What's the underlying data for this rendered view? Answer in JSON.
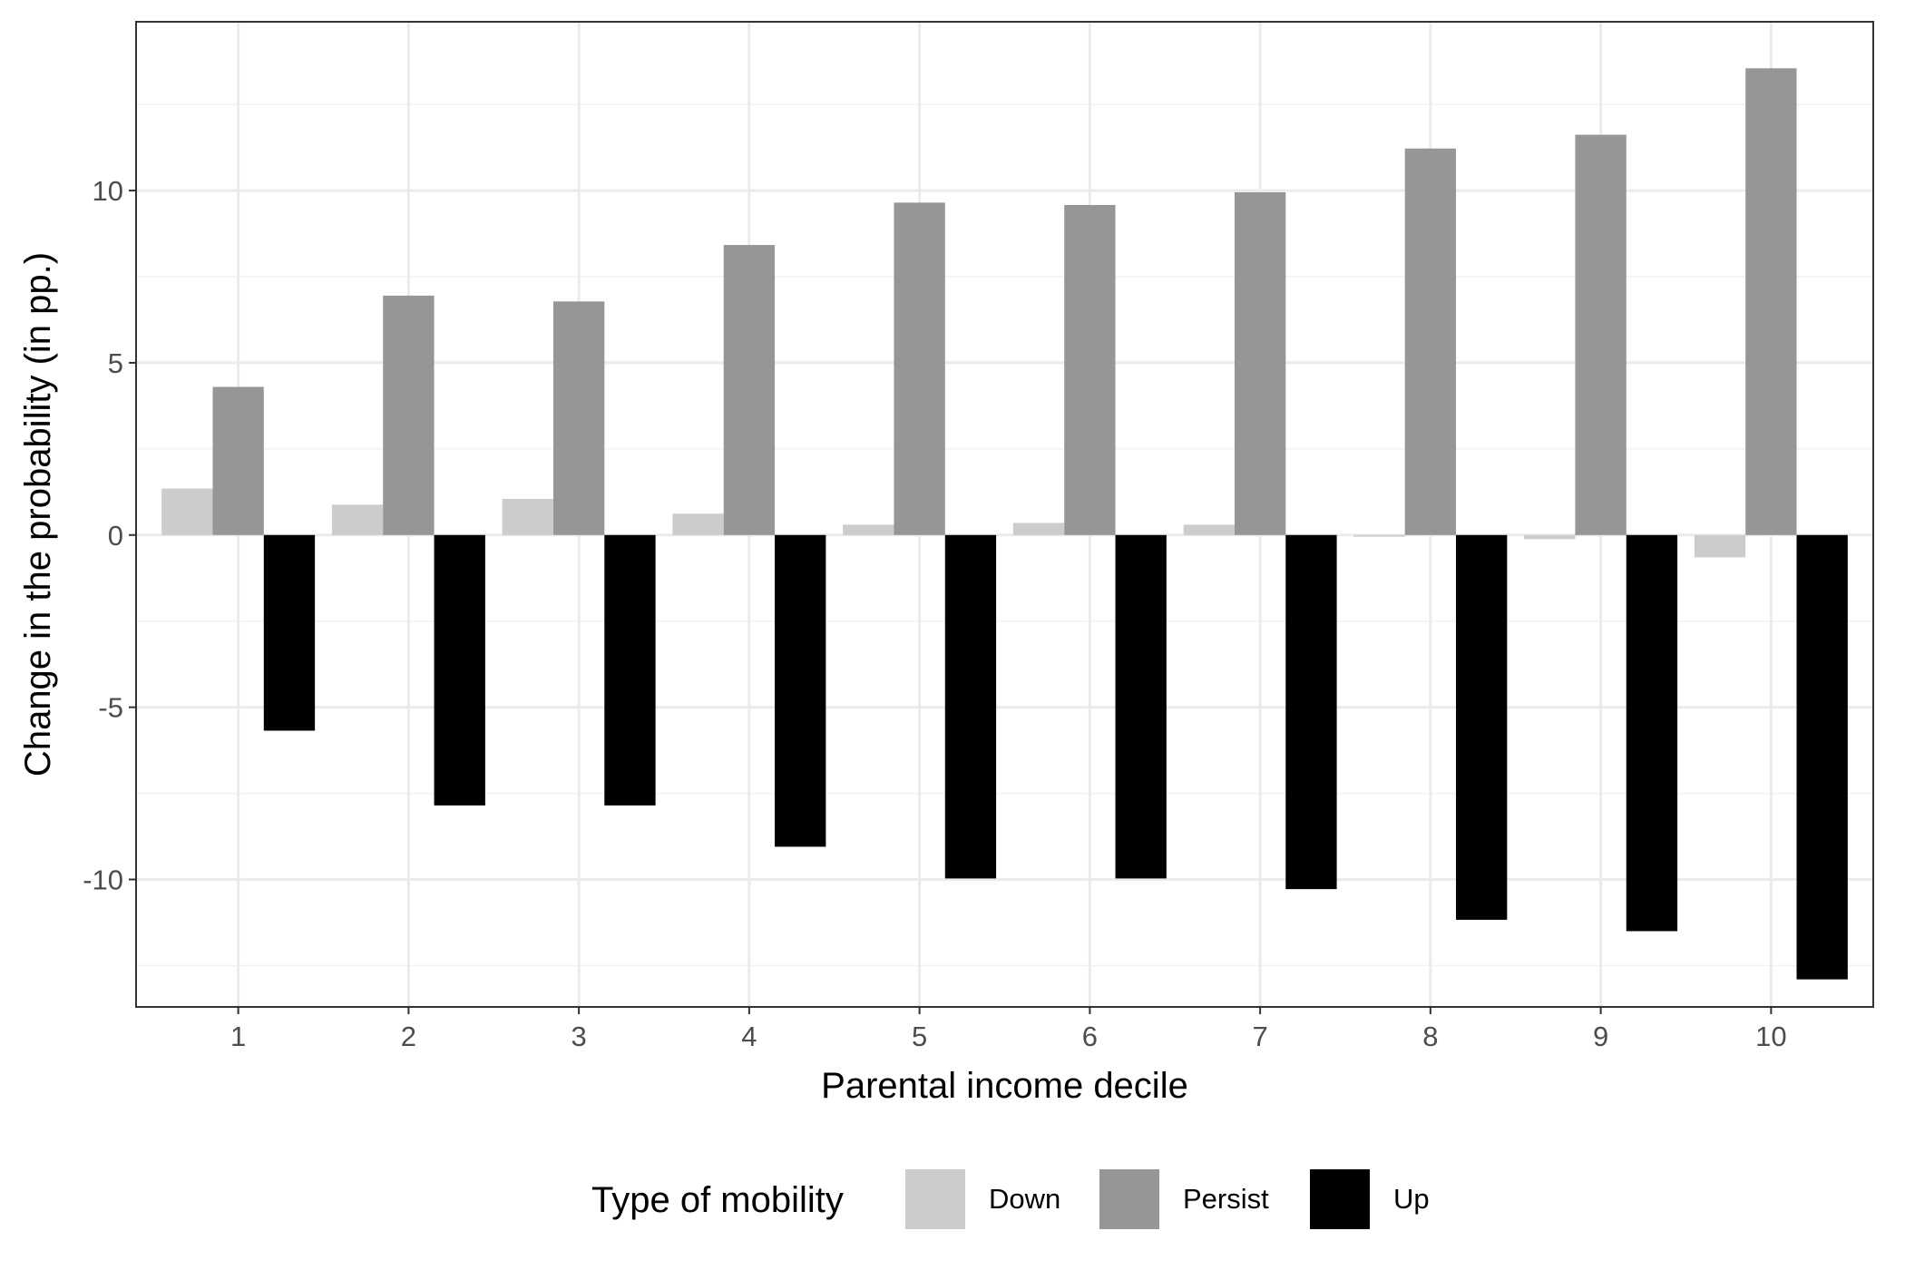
{
  "chart_data": {
    "type": "bar",
    "title": "",
    "xlabel": "Parental income decile",
    "ylabel": "Change in the probability (in pp.)",
    "categories": [
      "1",
      "2",
      "3",
      "4",
      "5",
      "6",
      "7",
      "8",
      "9",
      "10"
    ],
    "series": [
      {
        "name": "Down",
        "color": "#cccccc",
        "values": [
          1.35,
          0.88,
          1.05,
          0.62,
          0.3,
          0.35,
          0.3,
          -0.05,
          -0.12,
          -0.65
        ]
      },
      {
        "name": "Persist",
        "color": "#969696",
        "values": [
          4.3,
          6.95,
          6.78,
          8.42,
          9.65,
          9.58,
          9.95,
          11.22,
          11.62,
          13.55
        ]
      },
      {
        "name": "Up",
        "color": "#000000",
        "values": [
          -5.68,
          -7.85,
          -7.85,
          -9.05,
          -9.97,
          -9.97,
          -10.28,
          -11.17,
          -11.5,
          -12.9
        ]
      }
    ],
    "ylim": [
      -13.7,
      14.9
    ],
    "yticks": [
      -10,
      -5,
      0,
      5,
      10
    ],
    "ytick_labels": [
      "-10",
      "-5",
      "0",
      "5",
      "10"
    ],
    "grid": true,
    "legend": {
      "title": "Type of mobility",
      "position": "bottom"
    }
  }
}
